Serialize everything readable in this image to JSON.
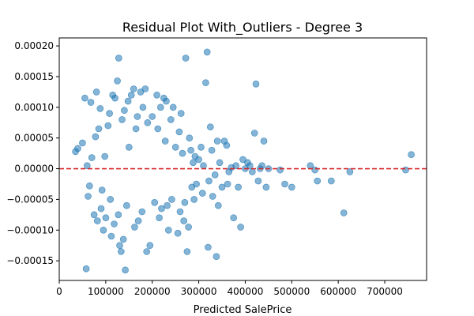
{
  "chart_data": {
    "type": "scatter",
    "title": "Residual Plot With_Outliers - Degree 3",
    "xlabel": "Predicted SalePrice",
    "ylabel": "",
    "xlim": [
      0,
      790000
    ],
    "ylim": [
      -0.000182,
      0.000213
    ],
    "x_ticks": [
      0,
      100000,
      200000,
      300000,
      400000,
      500000,
      600000,
      700000
    ],
    "x_tick_labels": [
      "0",
      "100000",
      "200000",
      "300000",
      "400000",
      "500000",
      "600000",
      "700000"
    ],
    "y_ticks": [
      -0.00015,
      -0.0001,
      -5e-05,
      0,
      5e-05,
      0.0001,
      0.00015,
      0.0002
    ],
    "y_tick_labels": [
      "−0.00015",
      "−0.00010",
      "−0.00005",
      "0.00000",
      "0.00005",
      "0.00010",
      "0.00015",
      "0.00020"
    ],
    "reference_line": {
      "y": 0,
      "style": "dashed",
      "color": "#d62728"
    },
    "marker_color": "#1f77b4",
    "marker_alpha": 0.55,
    "grid": false,
    "legend": "none",
    "points": [
      [
        35000,
        2.8e-05
      ],
      [
        40000,
        3.3e-05
      ],
      [
        50000,
        4.2e-05
      ],
      [
        55000,
        0.000115
      ],
      [
        58000,
        -0.000163
      ],
      [
        60000,
        5e-06
      ],
      [
        62000,
        -4.5e-05
      ],
      [
        65000,
        -2.8e-05
      ],
      [
        68000,
        0.000108
      ],
      [
        70000,
        1.8e-05
      ],
      [
        75000,
        -7.5e-05
      ],
      [
        78000,
        5.2e-05
      ],
      [
        80000,
        0.000125
      ],
      [
        82000,
        -8.5e-05
      ],
      [
        85000,
        6.5e-05
      ],
      [
        88000,
        9.8e-05
      ],
      [
        90000,
        -6.5e-05
      ],
      [
        92000,
        -3.5e-05
      ],
      [
        95000,
        -0.0001
      ],
      [
        98000,
        2e-05
      ],
      [
        100000,
        -8e-05
      ],
      [
        105000,
        7e-05
      ],
      [
        108000,
        9e-05
      ],
      [
        110000,
        -5e-05
      ],
      [
        112000,
        -0.00011
      ],
      [
        115000,
        0.00012
      ],
      [
        118000,
        -9e-05
      ],
      [
        120000,
        0.000115
      ],
      [
        125000,
        0.000143
      ],
      [
        127000,
        -7.5e-05
      ],
      [
        128000,
        0.00018
      ],
      [
        130000,
        -0.000125
      ],
      [
        133000,
        -0.000135
      ],
      [
        135000,
        8e-05
      ],
      [
        138000,
        -0.000115
      ],
      [
        140000,
        9.5e-05
      ],
      [
        142000,
        -0.000165
      ],
      [
        145000,
        -6e-05
      ],
      [
        148000,
        0.00011
      ],
      [
        150000,
        3.5e-05
      ],
      [
        155000,
        0.00012
      ],
      [
        160000,
        0.00013
      ],
      [
        162000,
        -9.5e-05
      ],
      [
        165000,
        6.5e-05
      ],
      [
        168000,
        8.5e-05
      ],
      [
        170000,
        -8.5e-05
      ],
      [
        175000,
        0.000125
      ],
      [
        178000,
        -7e-05
      ],
      [
        180000,
        0.0001
      ],
      [
        185000,
        0.00013
      ],
      [
        188000,
        -0.000135
      ],
      [
        190000,
        7.5e-05
      ],
      [
        195000,
        -0.000125
      ],
      [
        200000,
        8.5e-05
      ],
      [
        205000,
        -5.5e-05
      ],
      [
        210000,
        0.00012
      ],
      [
        212000,
        6.5e-05
      ],
      [
        215000,
        -8e-05
      ],
      [
        218000,
        0.0001
      ],
      [
        220000,
        -6.5e-05
      ],
      [
        225000,
        0.000115
      ],
      [
        228000,
        4.5e-05
      ],
      [
        230000,
        0.00011
      ],
      [
        232000,
        -6e-05
      ],
      [
        235000,
        -0.0001
      ],
      [
        240000,
        8e-05
      ],
      [
        242000,
        -5e-05
      ],
      [
        245000,
        0.0001
      ],
      [
        250000,
        3.5e-05
      ],
      [
        255000,
        -0.000105
      ],
      [
        258000,
        6e-05
      ],
      [
        260000,
        -7e-05
      ],
      [
        262000,
        9e-05
      ],
      [
        265000,
        2.5e-05
      ],
      [
        268000,
        -8.5e-05
      ],
      [
        270000,
        -5.5e-05
      ],
      [
        272000,
        0.00018
      ],
      [
        275000,
        -0.000135
      ],
      [
        278000,
        -9.5e-05
      ],
      [
        280000,
        5e-05
      ],
      [
        283000,
        3e-05
      ],
      [
        285000,
        -3e-05
      ],
      [
        288000,
        1e-05
      ],
      [
        290000,
        -5e-05
      ],
      [
        292000,
        2e-05
      ],
      [
        295000,
        -2.5e-05
      ],
      [
        300000,
        1.5e-05
      ],
      [
        305000,
        3.5e-05
      ],
      [
        308000,
        -4e-05
      ],
      [
        310000,
        5e-06
      ],
      [
        315000,
        0.00014
      ],
      [
        318000,
        0.00019
      ],
      [
        320000,
        -0.000128
      ],
      [
        322000,
        -2e-05
      ],
      [
        325000,
        6.8e-05
      ],
      [
        328000,
        3e-05
      ],
      [
        330000,
        -4.5e-05
      ],
      [
        335000,
        -1e-05
      ],
      [
        338000,
        -0.000143
      ],
      [
        340000,
        4.5e-05
      ],
      [
        342000,
        -6e-05
      ],
      [
        345000,
        1e-05
      ],
      [
        350000,
        -3e-05
      ],
      [
        355000,
        4.5e-05
      ],
      [
        360000,
        3.8e-05
      ],
      [
        362000,
        -2.5e-05
      ],
      [
        365000,
        -5e-06
      ],
      [
        370000,
        2e-06
      ],
      [
        375000,
        -8e-05
      ],
      [
        380000,
        5e-06
      ],
      [
        385000,
        -3e-05
      ],
      [
        390000,
        -9.5e-05
      ],
      [
        395000,
        1.5e-05
      ],
      [
        400000,
        0.0
      ],
      [
        405000,
        1e-05
      ],
      [
        410000,
        5e-06
      ],
      [
        415000,
        -5e-06
      ],
      [
        420000,
        5.8e-05
      ],
      [
        423000,
        0.000138
      ],
      [
        428000,
        -2e-05
      ],
      [
        432000,
        0.0
      ],
      [
        436000,
        5e-06
      ],
      [
        440000,
        4.5e-05
      ],
      [
        445000,
        -3e-05
      ],
      [
        450000,
        0.0
      ],
      [
        475000,
        -2e-06
      ],
      [
        485000,
        -2.5e-05
      ],
      [
        500000,
        -3e-05
      ],
      [
        540000,
        5e-06
      ],
      [
        550000,
        -2e-06
      ],
      [
        555000,
        -2e-05
      ],
      [
        585000,
        -2e-05
      ],
      [
        612000,
        -7.2e-05
      ],
      [
        625000,
        -5e-06
      ],
      [
        745000,
        -2e-06
      ],
      [
        757000,
        2.3e-05
      ]
    ]
  }
}
